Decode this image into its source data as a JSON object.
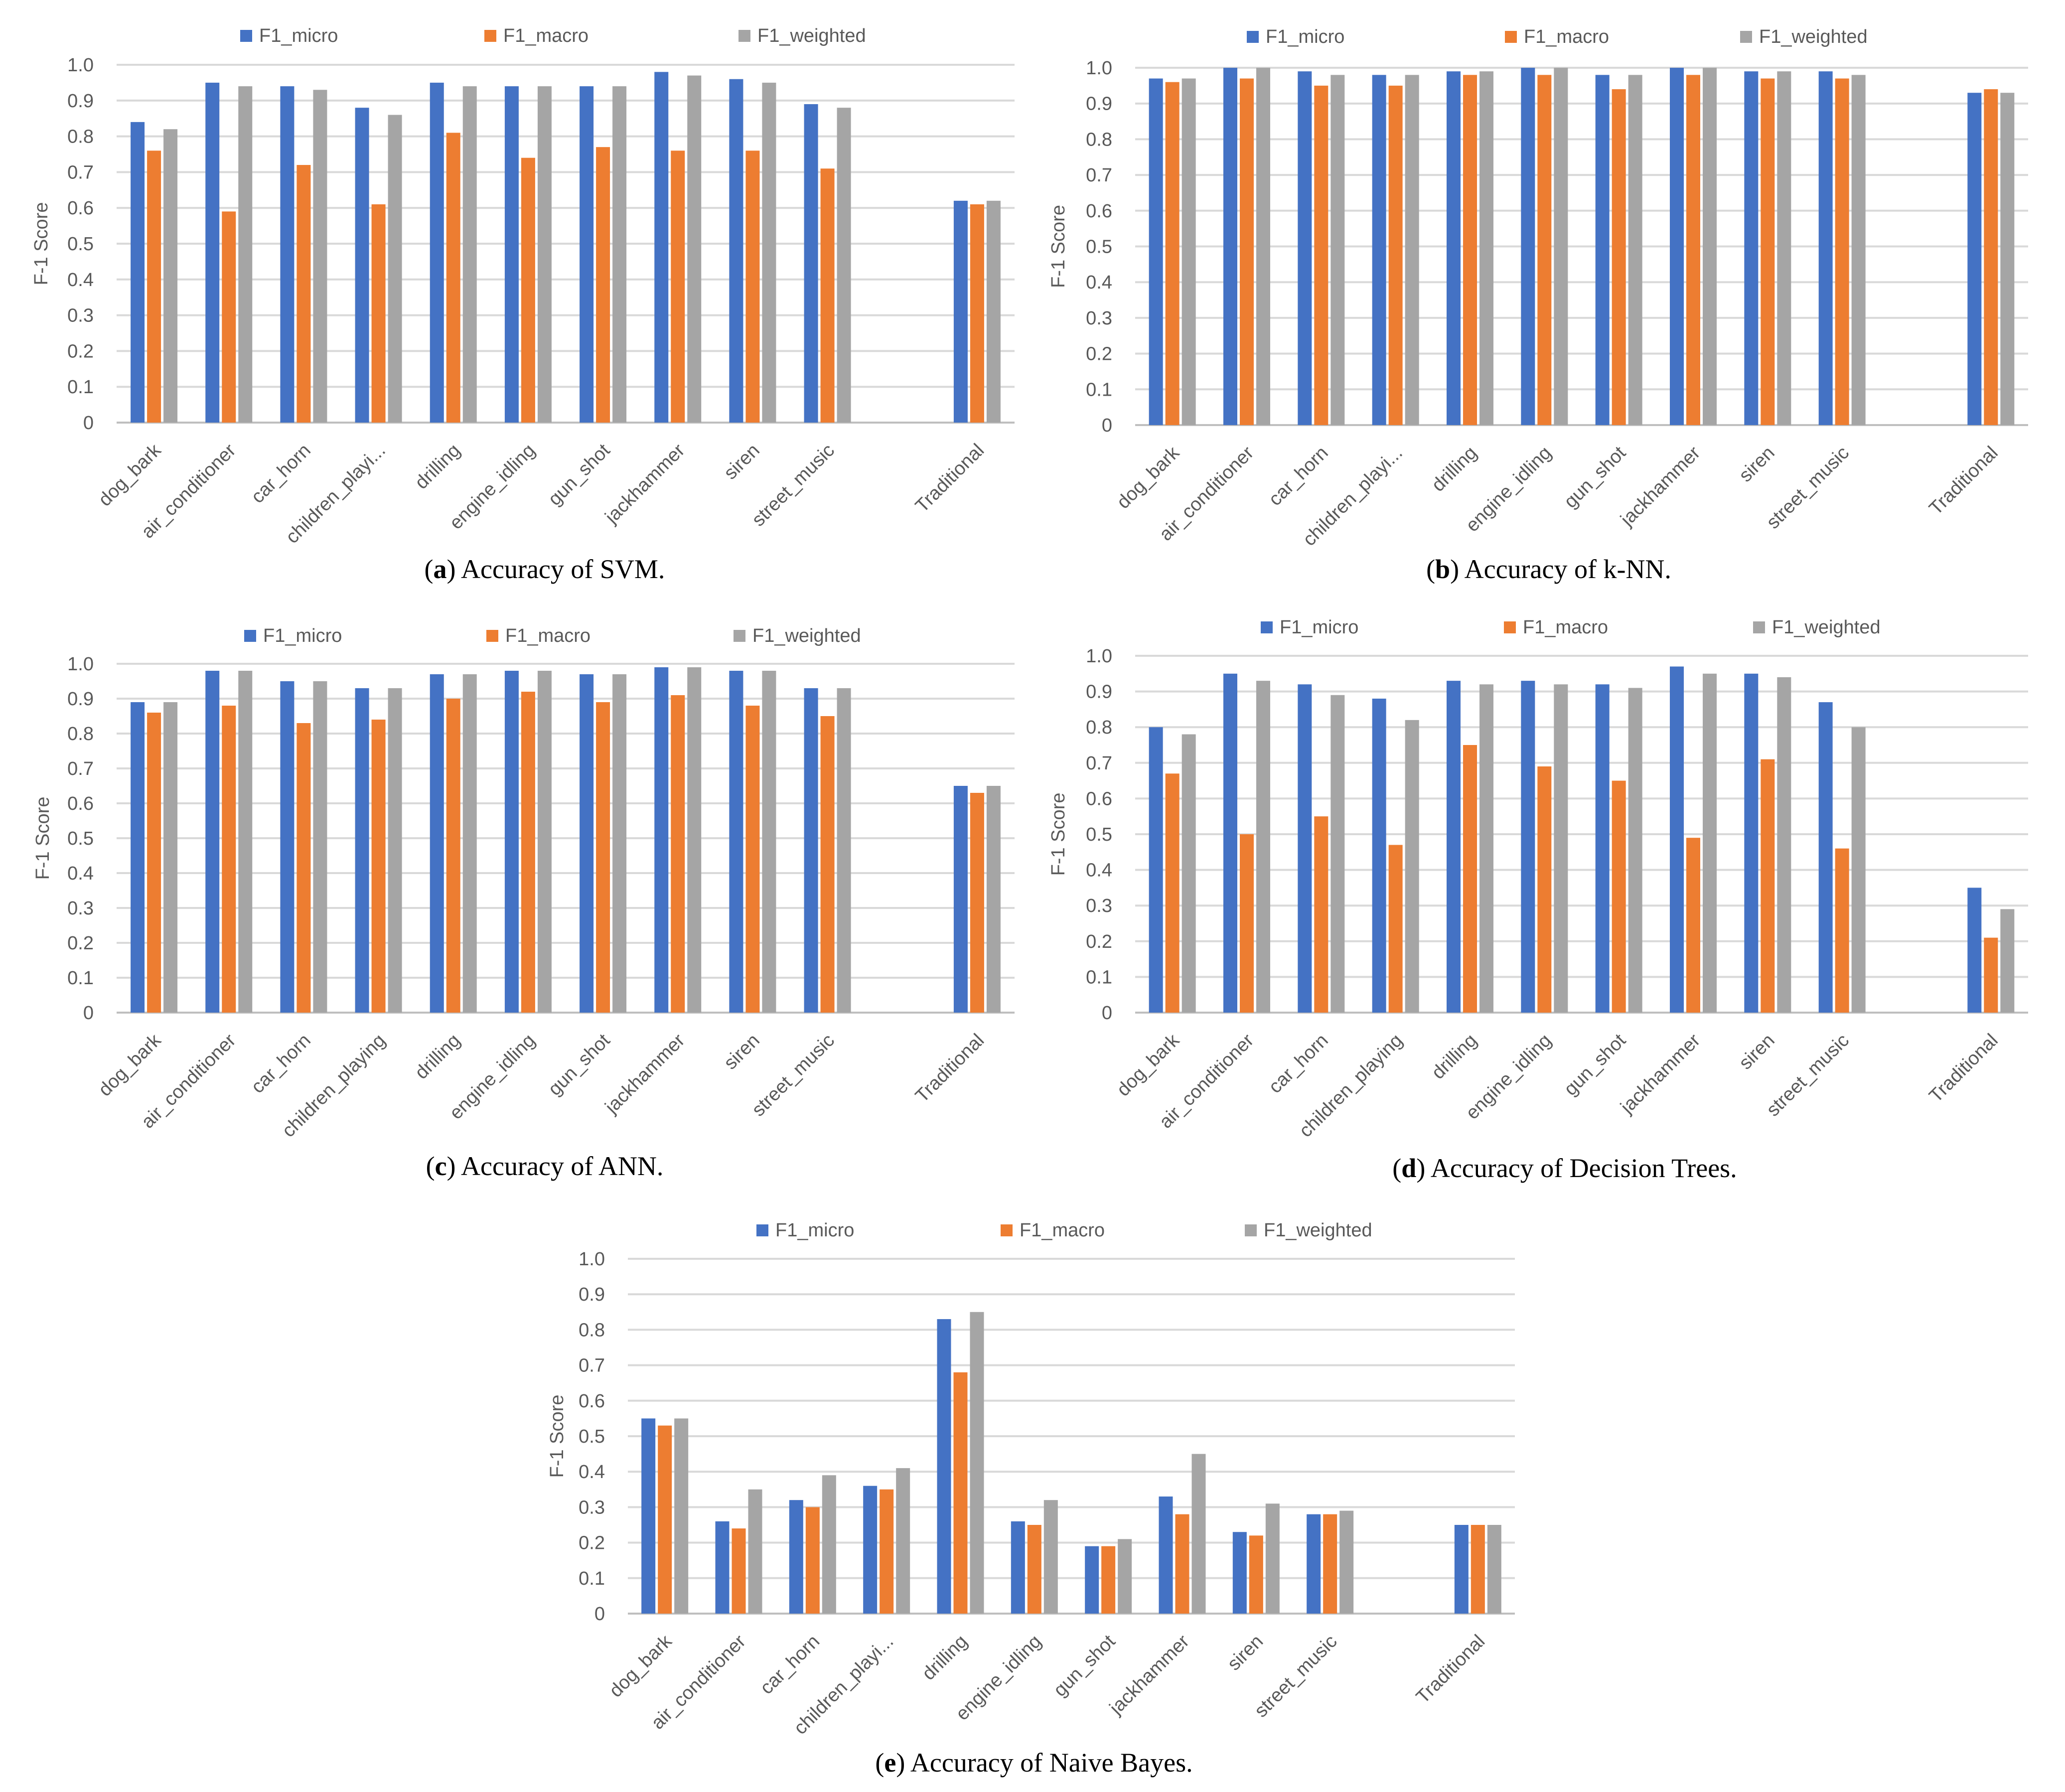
{
  "colors": {
    "F1_micro": "#4472C4",
    "F1_macro": "#ED7D31",
    "F1_weighted": "#A5A5A5",
    "grid": "#D9D9D9",
    "axis": "#BFBFBF"
  },
  "chart_data": [
    {
      "type": "bar",
      "panel": "a",
      "caption_letter": "(a)",
      "caption_text": "Accuracy of SVM.",
      "ylabel": "F-1 Score",
      "ylim": [
        0,
        1.0
      ],
      "yticks": [
        "0",
        "0.1",
        "0.2",
        "0.3",
        "0.4",
        "0.5",
        "0.6",
        "0.7",
        "0.8",
        "0.9",
        "1.0"
      ],
      "legend_position": "top",
      "categories": [
        "dog_bark",
        "air_conditioner",
        "car_horn",
        "children_playi...",
        "drilling",
        "engine_idling",
        "gun_shot",
        "jackhammer",
        "siren",
        "street_music",
        "",
        "Traditional"
      ],
      "series": [
        {
          "name": "F1_micro",
          "values": [
            0.84,
            0.95,
            0.94,
            0.88,
            0.95,
            0.94,
            0.94,
            0.98,
            0.96,
            0.89,
            null,
            0.62
          ]
        },
        {
          "name": "F1_macro",
          "values": [
            0.76,
            0.59,
            0.72,
            0.61,
            0.81,
            0.74,
            0.77,
            0.76,
            0.76,
            0.71,
            null,
            0.61
          ]
        },
        {
          "name": "F1_weighted",
          "values": [
            0.82,
            0.94,
            0.93,
            0.86,
            0.94,
            0.94,
            0.94,
            0.97,
            0.95,
            0.88,
            null,
            0.62
          ]
        }
      ]
    },
    {
      "type": "bar",
      "panel": "b",
      "caption_letter": "(b)",
      "caption_text": "Accuracy of k-NN.",
      "ylabel": "F-1 Score",
      "ylim": [
        0,
        1.0
      ],
      "yticks": [
        "0",
        "0.1",
        "0.2",
        "0.3",
        "0.4",
        "0.5",
        "0.6",
        "0.7",
        "0.8",
        "0.9",
        "1.0"
      ],
      "legend_position": "top",
      "categories": [
        "dog_bark",
        "air_conditioner",
        "car_horn",
        "children_playi...",
        "drilling",
        "engine_idling",
        "gun_shot",
        "jackhammer",
        "siren",
        "street_music",
        "",
        "Traditional"
      ],
      "series": [
        {
          "name": "F1_micro",
          "values": [
            0.97,
            1.0,
            0.99,
            0.98,
            0.99,
            1.0,
            0.98,
            1.0,
            0.99,
            0.99,
            null,
            0.93
          ]
        },
        {
          "name": "F1_macro",
          "values": [
            0.96,
            0.97,
            0.95,
            0.95,
            0.98,
            0.98,
            0.94,
            0.98,
            0.97,
            0.97,
            null,
            0.94
          ]
        },
        {
          "name": "F1_weighted",
          "values": [
            0.97,
            1.0,
            0.98,
            0.98,
            0.99,
            1.0,
            0.98,
            1.0,
            0.99,
            0.98,
            null,
            0.93
          ]
        }
      ]
    },
    {
      "type": "bar",
      "panel": "c",
      "caption_letter": "(c)",
      "caption_text": "Accuracy of ANN.",
      "ylabel": "F-1 Score",
      "ylim": [
        0,
        1.0
      ],
      "yticks": [
        "0",
        "0.1",
        "0.2",
        "0.3",
        "0.4",
        "0.5",
        "0.6",
        "0.7",
        "0.8",
        "0.9",
        "1.0"
      ],
      "legend_position": "top",
      "categories": [
        "dog_bark",
        "air_conditioner",
        "car_horn",
        "children_playing",
        "drilling",
        "engine_idling",
        "gun_shot",
        "jackhammer",
        "siren",
        "street_music",
        "",
        "Traditional"
      ],
      "series": [
        {
          "name": "F1_micro",
          "values": [
            0.89,
            0.98,
            0.95,
            0.93,
            0.97,
            0.98,
            0.97,
            0.99,
            0.98,
            0.93,
            null,
            0.65
          ]
        },
        {
          "name": "F1_macro",
          "values": [
            0.86,
            0.88,
            0.83,
            0.84,
            0.9,
            0.92,
            0.89,
            0.91,
            0.88,
            0.85,
            null,
            0.63
          ]
        },
        {
          "name": "F1_weighted",
          "values": [
            0.89,
            0.98,
            0.95,
            0.93,
            0.97,
            0.98,
            0.97,
            0.99,
            0.98,
            0.93,
            null,
            0.65
          ]
        }
      ]
    },
    {
      "type": "bar",
      "panel": "d",
      "caption_letter": "(d)",
      "caption_text": "Accuracy of Decision Trees.",
      "ylabel": "F-1 Score",
      "ylim": [
        0,
        1.0
      ],
      "yticks": [
        "0",
        "0.1",
        "0.2",
        "0.3",
        "0.4",
        "0.5",
        "0.6",
        "0.7",
        "0.8",
        "0.9",
        "1.0"
      ],
      "legend_position": "top",
      "categories": [
        "dog_bark",
        "air_conditioner",
        "car_horn",
        "children_playing",
        "drilling",
        "engine_idling",
        "gun_shot",
        "jackhammer",
        "siren",
        "street_music",
        "",
        "Traditional"
      ],
      "series": [
        {
          "name": "F1_micro",
          "values": [
            0.8,
            0.95,
            0.92,
            0.88,
            0.93,
            0.93,
            0.92,
            0.97,
            0.95,
            0.87,
            null,
            0.35
          ]
        },
        {
          "name": "F1_macro",
          "values": [
            0.67,
            0.5,
            0.55,
            0.47,
            0.75,
            0.69,
            0.65,
            0.49,
            0.71,
            0.46,
            null,
            0.21
          ]
        },
        {
          "name": "F1_weighted",
          "values": [
            0.78,
            0.93,
            0.89,
            0.82,
            0.92,
            0.92,
            0.91,
            0.95,
            0.94,
            0.8,
            null,
            0.29
          ]
        }
      ]
    },
    {
      "type": "bar",
      "panel": "e",
      "caption_letter": "(e)",
      "caption_text": "Accuracy of Naive Bayes.",
      "ylabel": "F-1 Score",
      "ylim": [
        0,
        1.0
      ],
      "yticks": [
        "0",
        "0.1",
        "0.2",
        "0.3",
        "0.4",
        "0.5",
        "0.6",
        "0.7",
        "0.8",
        "0.9",
        "1.0"
      ],
      "legend_position": "top",
      "categories": [
        "dog_bark",
        "air_conditioner",
        "car_horn",
        "children_playi...",
        "drilling",
        "engine_idling",
        "gun_shot",
        "jackhammer",
        "siren",
        "street_music",
        "",
        "Traditional"
      ],
      "series": [
        {
          "name": "F1_micro",
          "values": [
            0.55,
            0.26,
            0.32,
            0.36,
            0.83,
            0.26,
            0.19,
            0.33,
            0.23,
            0.28,
            null,
            0.25
          ]
        },
        {
          "name": "F1_macro",
          "values": [
            0.53,
            0.24,
            0.3,
            0.35,
            0.68,
            0.25,
            0.19,
            0.28,
            0.22,
            0.28,
            null,
            0.25
          ]
        },
        {
          "name": "F1_weighted",
          "values": [
            0.55,
            0.35,
            0.39,
            0.41,
            0.85,
            0.32,
            0.21,
            0.45,
            0.31,
            0.29,
            null,
            0.25
          ]
        }
      ]
    }
  ]
}
